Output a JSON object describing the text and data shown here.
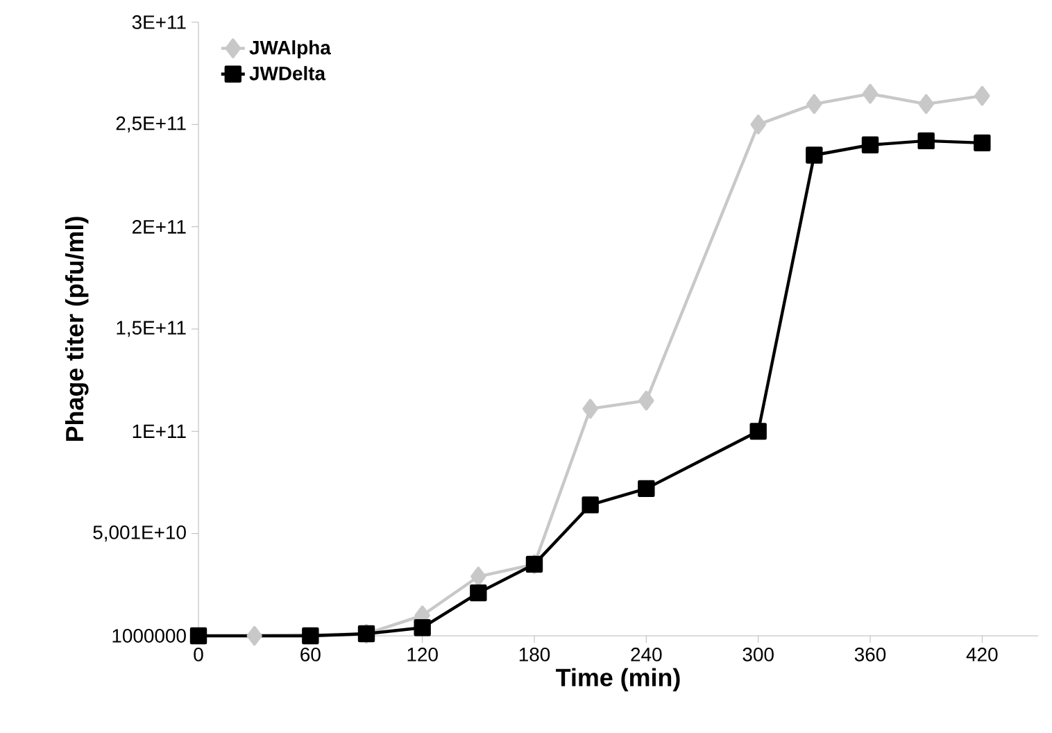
{
  "chart_data": {
    "type": "line",
    "xlabel": "Time (min)",
    "ylabel": "Phage titer (pfu/ml)",
    "x": [
      0,
      30,
      60,
      90,
      120,
      150,
      180,
      210,
      240,
      300,
      330,
      360,
      390,
      420
    ],
    "series": [
      {
        "name": "JWAlpha",
        "color": "#c8c8c8",
        "marker": "diamond",
        "values": [
          null,
          1000000,
          null,
          1000000000,
          10000000000,
          29000000000,
          35000000000,
          111000000000,
          115000000000,
          250000000000,
          260000000000,
          265000000000,
          260000000000,
          264000000000
        ]
      },
      {
        "name": "JWDelta",
        "color": "#000000",
        "marker": "square",
        "values": [
          1000000,
          null,
          1000000,
          1000000000,
          4000000000,
          21000000000,
          35000000000,
          64000000000,
          72000000000,
          100000000000,
          235000000000,
          240000000000,
          242000000000,
          241000000000
        ]
      }
    ],
    "xlim": [
      0,
      450
    ],
    "xticks": [
      0,
      60,
      120,
      180,
      240,
      300,
      360,
      420
    ],
    "ylim": [
      1000000,
      300000000000
    ],
    "yticks": [
      {
        "value": 1000000,
        "label": "1000000"
      },
      {
        "value": 50010000000,
        "label": "5,001E+10"
      },
      {
        "value": 100000000000,
        "label": "1E+11"
      },
      {
        "value": 150000000000,
        "label": "1,5E+11"
      },
      {
        "value": 200000000000,
        "label": "2E+11"
      },
      {
        "value": 250000000000,
        "label": "2,5E+11"
      },
      {
        "value": 300000000000,
        "label": "3E+11"
      }
    ],
    "legend": "top left",
    "line_style": "solid"
  }
}
